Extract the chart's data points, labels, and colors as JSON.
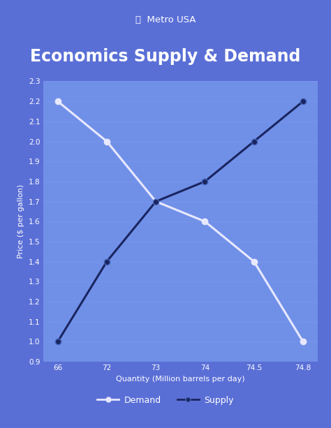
{
  "title": "Economics Supply & Demand",
  "xlabel": "Quantity (Million barrels per day)",
  "ylabel": "Price ($ per gallon)",
  "x_labels": [
    "66",
    "72",
    "73",
    "74",
    "74.5",
    "74.8"
  ],
  "demand_y": [
    2.2,
    2.0,
    1.7,
    1.6,
    1.4,
    1.0
  ],
  "supply_y": [
    1.0,
    1.4,
    1.7,
    1.8,
    2.0,
    2.2
  ],
  "demand_color": "#e8e8ff",
  "supply_color": "#1a2560",
  "supply_marker_edge": "#4466bb",
  "bg_color_outer": "#5a6fd6",
  "bg_color_inner_top": "#7090e8",
  "bg_color_inner_bottom": "#5060c0",
  "title_bg_color": "#1e2d6e",
  "title_text_color": "#ffffff",
  "axis_text_color": "#ffffff",
  "grid_color": "#8899ee",
  "logo_text": "Metro USA",
  "ylim": [
    0.9,
    2.3
  ],
  "yticks": [
    0.9,
    1.0,
    1.1,
    1.2,
    1.3,
    1.4,
    1.5,
    1.6,
    1.7,
    1.8,
    1.9,
    2.0,
    2.1,
    2.2,
    2.3
  ],
  "marker_size": 6,
  "line_width": 2.2,
  "title_fontsize": 17,
  "axis_fontsize": 7.5,
  "label_fontsize": 8
}
